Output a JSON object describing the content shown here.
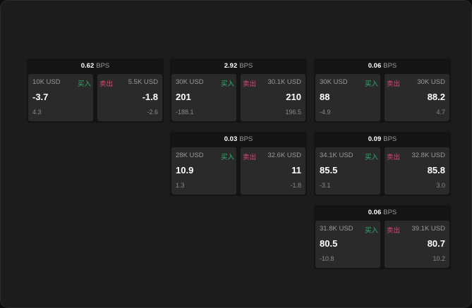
{
  "unit": "BPS",
  "buy_label": "买入",
  "sell_label": "卖出",
  "colors": {
    "buy": "#2fb36a",
    "sell": "#e0466e"
  },
  "quotes": [
    {
      "spread": "0.62",
      "buy": {
        "size": "10K USD",
        "price": "-3.7",
        "change": "4.3"
      },
      "sell": {
        "size": "5.5K USD",
        "price": "-1.8",
        "change": "-2.6"
      }
    },
    {
      "spread": "2.92",
      "buy": {
        "size": "30K USD",
        "price": "201",
        "change": "-188.1"
      },
      "sell": {
        "size": "30.1K USD",
        "price": "210",
        "change": "196.5"
      }
    },
    {
      "spread": "0.06",
      "buy": {
        "size": "30K USD",
        "price": "88",
        "change": "-4.9"
      },
      "sell": {
        "size": "30K USD",
        "price": "88.2",
        "change": "4.7"
      }
    },
    {
      "spread": "0.03",
      "buy": {
        "size": "28K USD",
        "price": "10.9",
        "change": "1.3"
      },
      "sell": {
        "size": "32.6K USD",
        "price": "11",
        "change": "-1.8"
      }
    },
    {
      "spread": "0.09",
      "buy": {
        "size": "34.1K USD",
        "price": "85.5",
        "change": "-3.1"
      },
      "sell": {
        "size": "32.8K USD",
        "price": "85.8",
        "change": "3.0"
      }
    },
    {
      "spread": "0.06",
      "buy": {
        "size": "31.8K USD",
        "price": "80.5",
        "change": "-10.8"
      },
      "sell": {
        "size": "39.1K USD",
        "price": "80.7",
        "change": "10.2"
      }
    }
  ]
}
